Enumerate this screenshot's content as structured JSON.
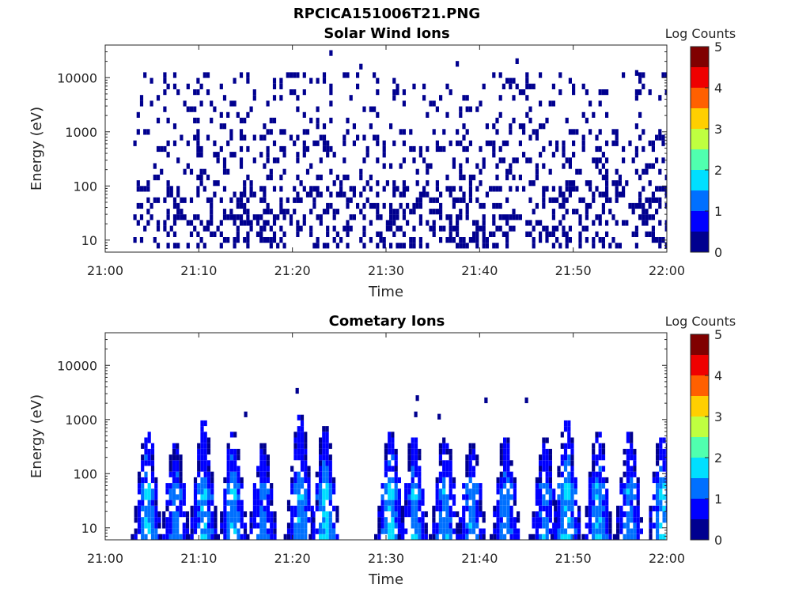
{
  "figure": {
    "title": "RPCICA151006T21.PNG"
  },
  "colormap": [
    "#00008f",
    "#0000ff",
    "#0070ff",
    "#00dfff",
    "#50ffaf",
    "#bfff40",
    "#ffcf00",
    "#ff6000",
    "#ef0000",
    "#800000"
  ],
  "chart_data": [
    {
      "type": "heatmap",
      "title": "Solar Wind Ions",
      "xlabel": "Time",
      "ylabel": "Energy (eV)",
      "x_tick_labels": [
        "21:00",
        "21:10",
        "21:20",
        "21:30",
        "21:40",
        "21:50",
        "22:00"
      ],
      "xlim": [
        "21:00",
        "22:00"
      ],
      "y_scale": "log",
      "y_tick_labels": [
        "10",
        "100",
        "1000",
        "10000"
      ],
      "ylim": [
        6,
        40000
      ],
      "colorbar": {
        "label": "Log Counts",
        "ticks": [
          "0",
          "1",
          "2",
          "3",
          "4",
          "5"
        ],
        "range": [
          0,
          5
        ]
      },
      "data_start": "21:03",
      "data_end": "22:00",
      "dominant_level": 0.2,
      "description": "Sparse low-level (log counts ≈ 0–0.5) scattered ion counts across 10 eV – 10 keV, denser below 100 eV"
    },
    {
      "type": "heatmap",
      "title": "Cometary Ions",
      "xlabel": "Time",
      "ylabel": "Energy (eV)",
      "x_tick_labels": [
        "21:00",
        "21:10",
        "21:20",
        "21:30",
        "21:40",
        "21:50",
        "22:00"
      ],
      "xlim": [
        "21:00",
        "22:00"
      ],
      "y_scale": "log",
      "y_tick_labels": [
        "10",
        "100",
        "1000",
        "10000"
      ],
      "ylim": [
        6,
        40000
      ],
      "colorbar": {
        "label": "Log Counts",
        "ticks": [
          "0",
          "1",
          "2",
          "3",
          "4",
          "5"
        ],
        "range": [
          0,
          5
        ]
      },
      "bursts": [
        {
          "t": "21:04:20",
          "emax": 550,
          "peak_level": 1.8
        },
        {
          "t": "21:07:20",
          "emax": 300,
          "peak_level": 1.6
        },
        {
          "t": "21:10:20",
          "emax": 900,
          "peak_level": 1.7
        },
        {
          "t": "21:13:30",
          "emax": 500,
          "peak_level": 1.8
        },
        {
          "t": "21:16:40",
          "emax": 300,
          "peak_level": 1.5
        },
        {
          "t": "21:20:40",
          "emax": 1100,
          "peak_level": 1.7
        },
        {
          "t": "21:23:20",
          "emax": 600,
          "peak_level": 1.9
        },
        {
          "t": "21:30:20",
          "emax": 500,
          "peak_level": 1.9
        },
        {
          "t": "21:32:50",
          "emax": 450,
          "peak_level": 1.6
        },
        {
          "t": "21:36:10",
          "emax": 450,
          "peak_level": 1.6
        },
        {
          "t": "21:39:00",
          "emax": 300,
          "peak_level": 1.6
        },
        {
          "t": "21:42:40",
          "emax": 450,
          "peak_level": 1.6
        },
        {
          "t": "21:46:50",
          "emax": 400,
          "peak_level": 1.5
        },
        {
          "t": "21:49:10",
          "emax": 800,
          "peak_level": 1.9
        },
        {
          "t": "21:52:30",
          "emax": 550,
          "peak_level": 1.7
        },
        {
          "t": "21:55:50",
          "emax": 500,
          "peak_level": 1.5
        },
        {
          "t": "21:59:20",
          "emax": 550,
          "peak_level": 1.9
        }
      ],
      "isolated_points": [
        {
          "t": "21:20:20",
          "e": 3000
        },
        {
          "t": "21:33:10",
          "e": 2200
        },
        {
          "t": "21:33:00",
          "e": 1100
        },
        {
          "t": "21:40:30",
          "e": 2000
        },
        {
          "t": "21:44:50",
          "e": 2000
        },
        {
          "t": "21:14:50",
          "e": 1100
        },
        {
          "t": "21:35:30",
          "e": 1000
        }
      ]
    }
  ]
}
